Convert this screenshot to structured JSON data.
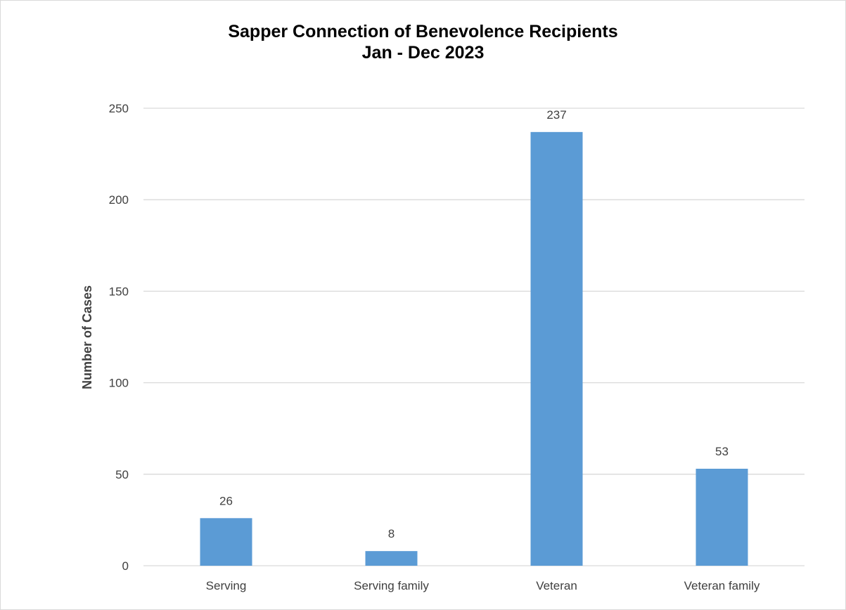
{
  "chart_data": {
    "type": "bar",
    "title": "Sapper Connection of Benevolence Recipients",
    "subtitle": "Jan - Dec 2023",
    "xlabel": "",
    "ylabel": "Number of Cases",
    "categories": [
      "Serving",
      "Serving family",
      "Veteran",
      "Veteran family"
    ],
    "values": [
      26,
      8,
      237,
      53
    ],
    "data_labels": [
      "26",
      "8",
      "237",
      "53"
    ],
    "ylim": [
      0,
      250
    ],
    "yticks": [
      0,
      50,
      100,
      150,
      200,
      250
    ],
    "grid": true,
    "legend": "none",
    "bar_color": "#5b9bd5",
    "grid_color": "#d9d9d9"
  }
}
